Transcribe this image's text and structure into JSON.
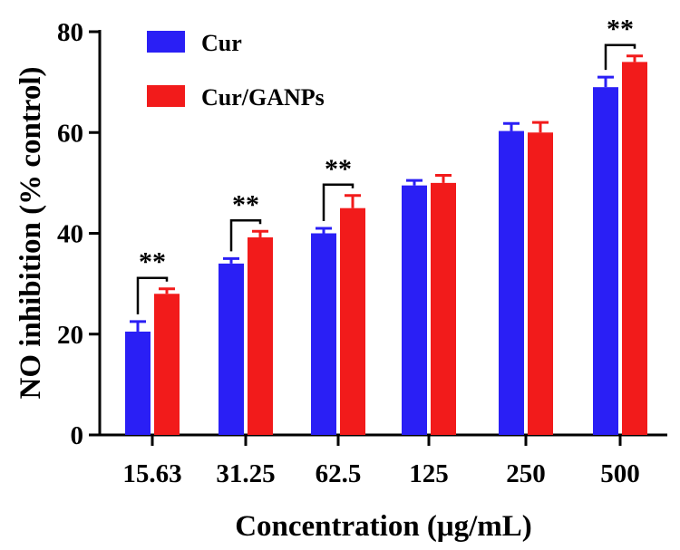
{
  "chart_data": {
    "type": "bar",
    "title": "",
    "xlabel": "Concentration (μg/mL)",
    "ylabel": "NO inhibition (% control)",
    "ylim": [
      0,
      80
    ],
    "yticks": [
      "0",
      "20",
      "40",
      "60",
      "80"
    ],
    "categories": [
      "15.63",
      "31.25",
      "62.5",
      "125",
      "250",
      "500"
    ],
    "series": [
      {
        "name": "Cur",
        "color": "#2a1ff5",
        "values": [
          20.5,
          34,
          40,
          49.5,
          60.3,
          69
        ],
        "errors": [
          2,
          1,
          1,
          1,
          1.5,
          2
        ]
      },
      {
        "name": "Cur/GANPs",
        "color": "#f21b1b",
        "values": [
          28,
          39.2,
          45,
          50,
          60,
          74
        ],
        "errors": [
          1,
          1.2,
          2.5,
          1.5,
          2,
          1.2
        ]
      }
    ],
    "significance": [
      {
        "category": "15.63",
        "label": "**"
      },
      {
        "category": "31.25",
        "label": "**"
      },
      {
        "category": "62.5",
        "label": "**"
      },
      {
        "category": "500",
        "label": "**"
      }
    ]
  }
}
